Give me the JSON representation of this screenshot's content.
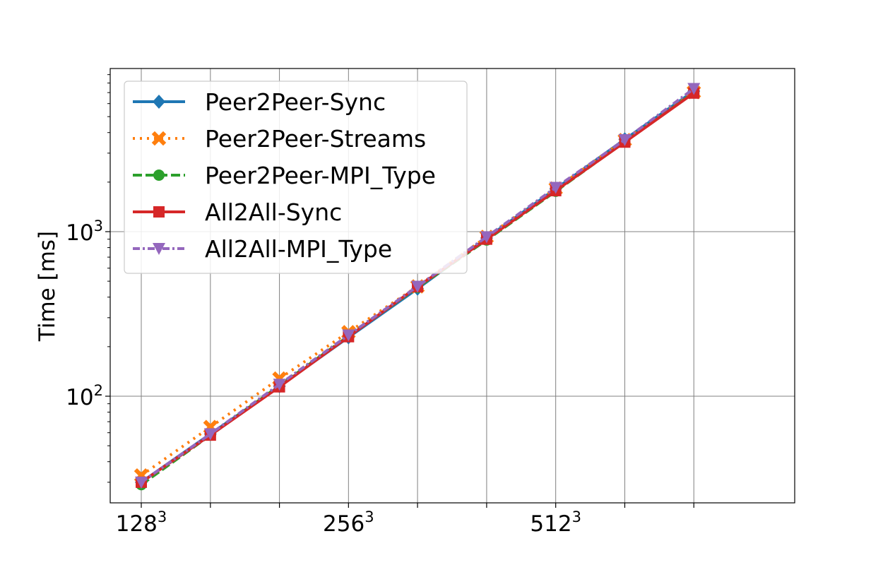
{
  "chart_data": {
    "type": "line",
    "title": "",
    "xlabel": "",
    "ylabel": "Time [ms]",
    "x_scale": "log2 (grid size N, plotted as N^3)",
    "y_scale": "log",
    "grid": true,
    "legend_position": "top-left",
    "x": [
      128,
      161.3,
      203.2,
      256,
      322.5,
      406.4,
      512,
      645.1,
      812.7
    ],
    "x_ticks": [
      {
        "base": "128",
        "exp": "3"
      },
      {
        "base": "256",
        "exp": "3"
      },
      {
        "base": "512",
        "exp": "3"
      }
    ],
    "y_ticks": [
      {
        "base": "10",
        "exp": "2"
      },
      {
        "base": "10",
        "exp": "3"
      }
    ],
    "series": [
      {
        "name": "Peer2Peer-Sync",
        "color": "#1f77b4",
        "dash": "solid",
        "marker": "diamond",
        "values": [
          30,
          59,
          115,
          228,
          450,
          915,
          1820,
          3640,
          7150
        ]
      },
      {
        "name": "Peer2Peer-Streams",
        "color": "#ff7f0e",
        "dash": "dotted",
        "marker": "x-filled",
        "values": [
          33,
          65,
          128,
          245,
          465,
          930,
          1830,
          3600,
          7050
        ]
      },
      {
        "name": "Peer2Peer-MPI_Type",
        "color": "#2ca02c",
        "dash": "dashed",
        "marker": "circle",
        "values": [
          29,
          58,
          116,
          232,
          458,
          890,
          1760,
          3520,
          7000
        ]
      },
      {
        "name": "All2All-Sync",
        "color": "#d62728",
        "dash": "solid",
        "marker": "square",
        "values": [
          30,
          58,
          114,
          230,
          463,
          900,
          1775,
          3500,
          6950
        ]
      },
      {
        "name": "All2All-MPI_Type",
        "color": "#9467bd",
        "dash": "dashdot",
        "marker": "triangle-down",
        "values": [
          30,
          59,
          118,
          235,
          465,
          930,
          1855,
          3620,
          7400
        ]
      }
    ]
  }
}
